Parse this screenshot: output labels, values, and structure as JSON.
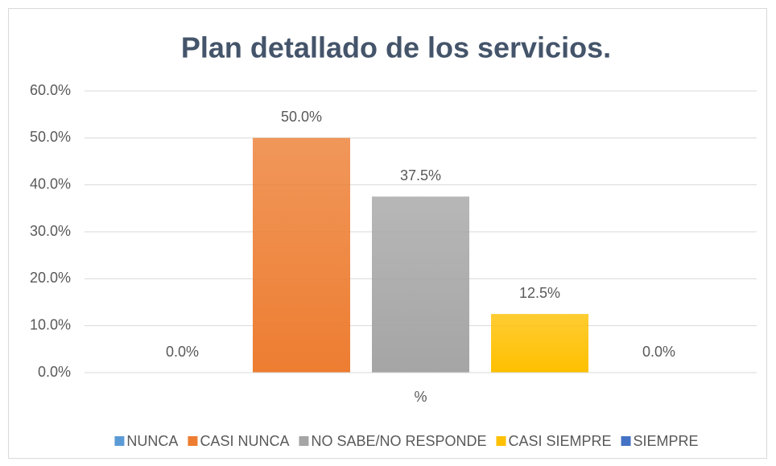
{
  "chart_data": {
    "type": "bar",
    "title": "Plan detallado de los servicios.",
    "categories": [
      "%"
    ],
    "series": [
      {
        "name": "NUNCA",
        "color": "#5B9BD5",
        "values": [
          0
        ],
        "value_labels": [
          "0.0%"
        ]
      },
      {
        "name": "CASI NUNCA",
        "color": "#ED7D31",
        "values": [
          50
        ],
        "value_labels": [
          "50.0%"
        ]
      },
      {
        "name": "NO SABE/NO RESPONDE",
        "color": "#A5A5A5",
        "values": [
          37.5
        ],
        "value_labels": [
          "37.5%"
        ]
      },
      {
        "name": "CASI SIEMPRE",
        "color": "#FFC000",
        "values": [
          12.5
        ],
        "value_labels": [
          "12.5%"
        ]
      },
      {
        "name": "SIEMPRE",
        "color": "#4472C4",
        "values": [
          0
        ],
        "value_labels": [
          "0.0%"
        ]
      }
    ],
    "ylim": [
      0,
      60
    ],
    "yticks": [
      {
        "value": 0,
        "label": "0.0%"
      },
      {
        "value": 10,
        "label": "10.0%"
      },
      {
        "value": 20,
        "label": "20.0%"
      },
      {
        "value": 30,
        "label": "30.0%"
      },
      {
        "value": 40,
        "label": "40.0%"
      },
      {
        "value": 50,
        "label": "50.0%"
      },
      {
        "value": 60,
        "label": "60.0%"
      }
    ],
    "grid": true,
    "legend": "bottom"
  }
}
